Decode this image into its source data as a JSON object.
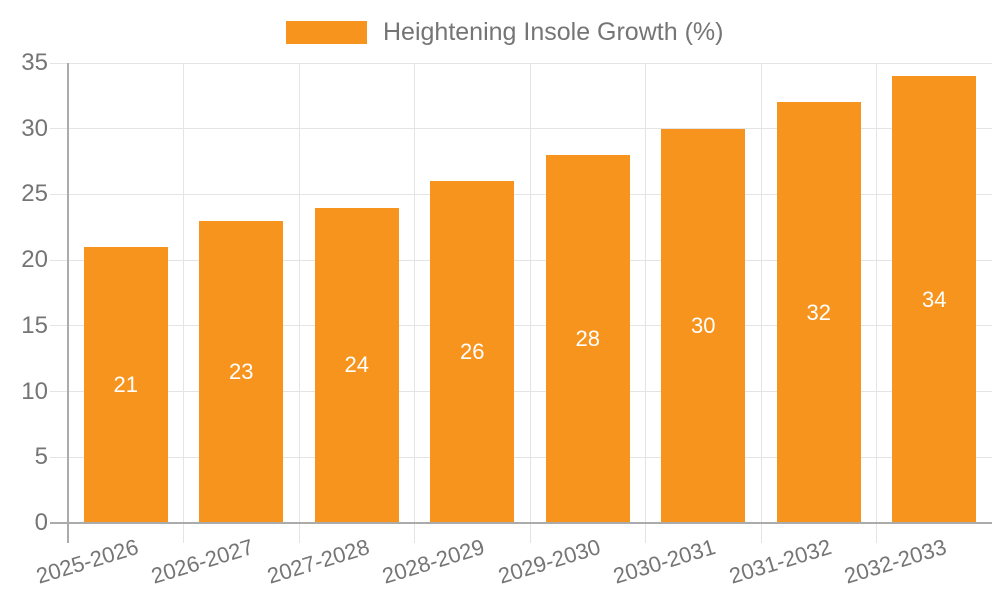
{
  "chart_data": {
    "type": "bar",
    "title": "",
    "legend_label": "Heightening Insole Growth (%)",
    "legend_position": "top",
    "categories": [
      "2025-2026",
      "2026-2027",
      "2027-2028",
      "2028-2029",
      "2029-2030",
      "2030-2031",
      "2031-2032",
      "2032-2033"
    ],
    "values": [
      21,
      23,
      24,
      26,
      28,
      30,
      32,
      34
    ],
    "xlabel": "",
    "ylabel": "",
    "ylim": [
      0,
      35
    ],
    "yticks": [
      0,
      5,
      10,
      15,
      20,
      25,
      30,
      35
    ],
    "grid": true,
    "x_label_rotation_deg": -17,
    "colors": {
      "bar": "#F7941E",
      "axis_text": "#757575",
      "bar_value_text": "#FFFFFF",
      "gridline": "#E4E4E4",
      "axis_line": "#ABABAB"
    }
  }
}
